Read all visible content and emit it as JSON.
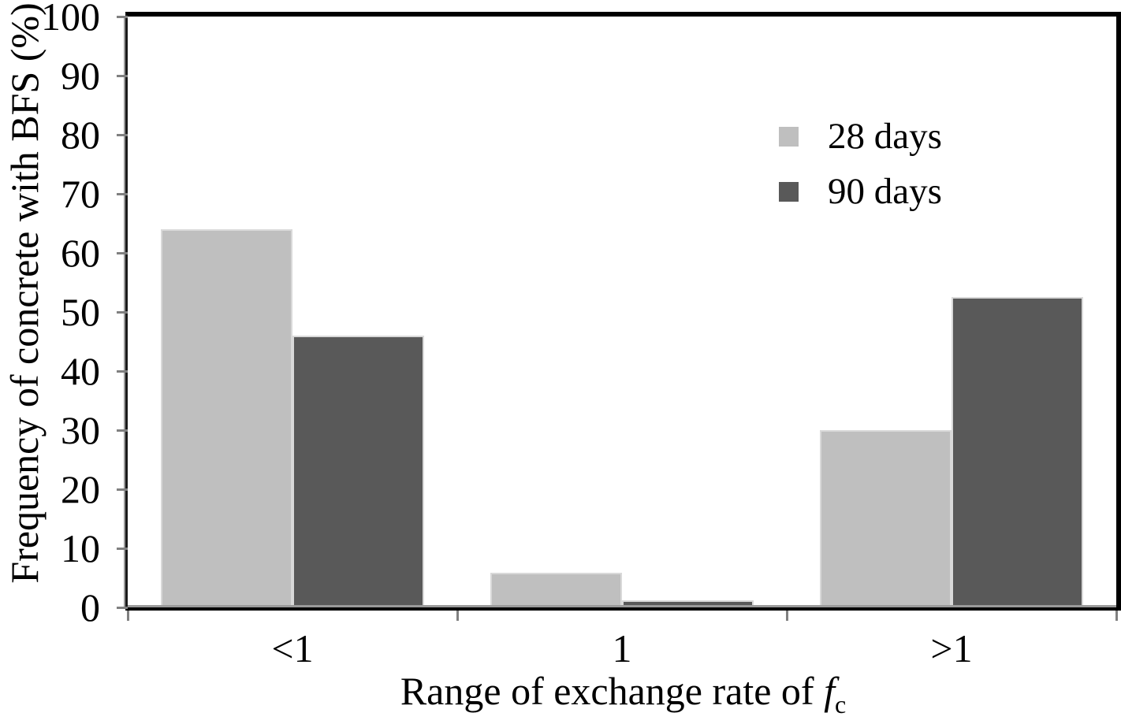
{
  "chart_data": {
    "type": "bar",
    "title": "",
    "categories": [
      "<1",
      "1",
      ">1"
    ],
    "series": [
      {
        "name": "28 days",
        "color": "#bfbfbf",
        "values": [
          64,
          5.9,
          30
        ]
      },
      {
        "name": "90 days",
        "color": "#595959",
        "values": [
          46,
          1.2,
          52.5
        ]
      }
    ],
    "xlabel": {
      "prefix": "Range of exchange rate of ",
      "var": "f",
      "sub": "c"
    },
    "ylabel": "Frequency of concrete with BFS (%)",
    "ylim": [
      0,
      100
    ],
    "yticks": [
      0,
      10,
      20,
      30,
      40,
      50,
      60,
      70,
      80,
      90,
      100
    ],
    "grid": false,
    "legend_position": "upper right",
    "colors": {
      "series_28_days": "#bfbfbf",
      "series_90_days": "#595959",
      "frame": "#000000",
      "axis_gray": "#9a9a9a",
      "tick_gray": "#808080",
      "bar_edge": "#d9d9d9",
      "text": "#000000",
      "background": "#ffffff"
    }
  }
}
